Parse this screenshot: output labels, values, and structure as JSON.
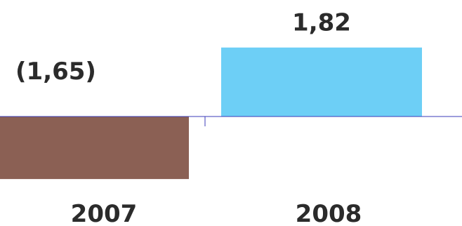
{
  "chart_data": {
    "type": "bar",
    "categories": [
      "2007",
      "2008"
    ],
    "values": [
      -1.65,
      1.82
    ],
    "data_labels": [
      "(1,65)",
      "1,82"
    ],
    "colors": [
      "#8b6054",
      "#6dcff6"
    ],
    "axis_color": "#3b3bb8",
    "title": "",
    "xlabel": "",
    "ylabel": "",
    "grid": false,
    "legend": "none"
  }
}
